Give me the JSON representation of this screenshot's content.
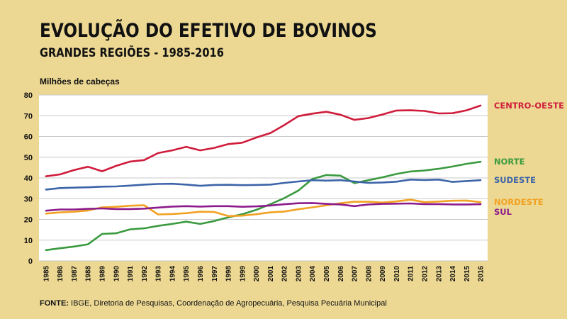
{
  "header": {
    "title": "EVOLUÇÃO DO EFETIVO DE BOVINOS",
    "subtitle": "GRANDES REGIÕES - 1985-2016"
  },
  "footer": {
    "source_label": "FONTE:",
    "source_text": " IBGE, Diretoria de Pesquisas, Coordenação de Agropecuária, Pesquisa Pecuária Municipal"
  },
  "chart_data": {
    "type": "line",
    "ylabel": "Milhões de cabeças",
    "xlabel": "",
    "ylim": [
      0,
      80
    ],
    "yticks": [
      0,
      10,
      20,
      30,
      40,
      50,
      60,
      70,
      80
    ],
    "grid": true,
    "legend": "right, labels at line ends",
    "x": [
      "1985",
      "1986",
      "1987",
      "1988",
      "1989",
      "1990",
      "1991",
      "1992",
      "1993",
      "1994",
      "1995",
      "1996",
      "1997",
      "1998",
      "1999",
      "2000",
      "2001",
      "2002",
      "2003",
      "2004",
      "2005",
      "2006",
      "2007",
      "2008",
      "2009",
      "2010",
      "2011",
      "2012",
      "2013",
      "2014",
      "2015",
      "2016"
    ],
    "series": [
      {
        "name": "CENTRO-OESTE",
        "color": "#d01c3c",
        "values": [
          40.8,
          41.7,
          43.8,
          45.4,
          43.2,
          45.8,
          47.9,
          48.6,
          52.0,
          53.3,
          55.0,
          53.3,
          54.5,
          56.3,
          57.0,
          59.5,
          61.6,
          65.5,
          69.8,
          71.0,
          71.9,
          70.5,
          68.0,
          68.9,
          70.6,
          72.5,
          72.6,
          72.3,
          71.1,
          71.2,
          72.6,
          74.9
        ]
      },
      {
        "name": "NORTE",
        "color": "#3a9a3e",
        "values": [
          5.2,
          6.1,
          6.9,
          8.0,
          13.0,
          13.3,
          15.2,
          15.7,
          16.9,
          17.8,
          18.9,
          17.8,
          19.2,
          21.0,
          22.5,
          24.6,
          27.3,
          30.3,
          33.9,
          39.5,
          41.4,
          41.1,
          37.5,
          38.9,
          40.3,
          41.9,
          43.1,
          43.6,
          44.4,
          45.5,
          46.8,
          47.8
        ]
      },
      {
        "name": "SUDESTE",
        "color": "#3c64a8",
        "values": [
          34.4,
          35.1,
          35.3,
          35.5,
          35.8,
          35.9,
          36.3,
          36.8,
          37.1,
          37.2,
          36.8,
          36.2,
          36.6,
          36.7,
          36.5,
          36.6,
          36.8,
          37.6,
          38.3,
          38.9,
          38.7,
          38.9,
          38.3,
          37.6,
          37.8,
          38.2,
          39.2,
          39.0,
          39.2,
          38.1,
          38.5,
          38.9
        ]
      },
      {
        "name": "NORDESTE",
        "color": "#f2a122",
        "values": [
          22.8,
          23.4,
          23.7,
          24.3,
          25.8,
          26.1,
          26.6,
          26.8,
          22.4,
          22.6,
          23.0,
          23.7,
          23.6,
          21.6,
          21.8,
          22.5,
          23.4,
          23.8,
          24.9,
          25.8,
          26.8,
          27.8,
          28.5,
          28.5,
          28.1,
          28.7,
          29.5,
          28.3,
          28.6,
          29.0,
          29.1,
          28.3
        ]
      },
      {
        "name": "SUL",
        "color": "#8c1c8c",
        "values": [
          24.2,
          24.8,
          24.8,
          25.1,
          25.3,
          25.0,
          25.0,
          25.2,
          25.7,
          26.2,
          26.4,
          26.2,
          26.4,
          26.4,
          26.1,
          26.3,
          26.7,
          27.3,
          27.8,
          27.9,
          27.5,
          27.2,
          26.4,
          27.2,
          27.5,
          27.6,
          27.7,
          27.4,
          27.4,
          27.2,
          27.2,
          27.3
        ]
      }
    ]
  }
}
